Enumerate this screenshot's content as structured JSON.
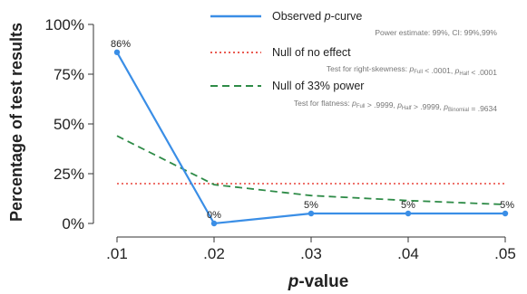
{
  "chart_data": {
    "type": "line",
    "title": "",
    "xlabel_prefix": "p",
    "xlabel_suffix": "-value",
    "ylabel": "Percentage of test results",
    "x": [
      0.01,
      0.02,
      0.03,
      0.04,
      0.05
    ],
    "x_tick_labels": [
      ".01",
      ".02",
      ".03",
      ".04",
      ".05"
    ],
    "xlim": [
      0.01,
      0.05
    ],
    "y_ticks": [
      0,
      25,
      50,
      75,
      100
    ],
    "y_tick_labels": [
      "0%",
      "25%",
      "50%",
      "75%",
      "100%"
    ],
    "ylim": [
      0,
      100
    ],
    "grid": false,
    "legend_position": "top-right",
    "series": [
      {
        "name": "Observed p-curve",
        "name_prefix": "Observed ",
        "name_italic": "p",
        "name_suffix": "-curve",
        "subtitle": "Power estimate: 99%, CI: 99%,99%",
        "values": [
          86,
          0,
          5,
          5,
          5
        ],
        "data_labels": [
          "86%",
          "0%",
          "5%",
          "5%",
          "5%"
        ],
        "color": "#3a8ee6",
        "style": "solid"
      },
      {
        "name": "Null of no effect",
        "subtitle": "Test for right-skewness: pFull < .0001, pHalf < .0001",
        "subtitle_parts": [
          "Test for right-skewness: ",
          "p",
          "Full",
          " < .0001, ",
          "p",
          "Half",
          " < .0001"
        ],
        "values": [
          20,
          20,
          20,
          20,
          20
        ],
        "color": "#e8443a",
        "style": "dotted"
      },
      {
        "name": "Null of 33% power",
        "subtitle": "Test for flatness: pFull > .9999, pHalf > .9999, pBinomial = .9634",
        "subtitle_parts": [
          "Test for flatness: ",
          "p",
          "Full",
          " > .9999, ",
          "p",
          "Half",
          " > .9999, ",
          "p",
          "Binomial",
          " = .9634"
        ],
        "values": [
          44,
          19.5,
          14,
          11.5,
          9.5
        ],
        "color": "#2e8b47",
        "style": "dashed"
      }
    ]
  }
}
